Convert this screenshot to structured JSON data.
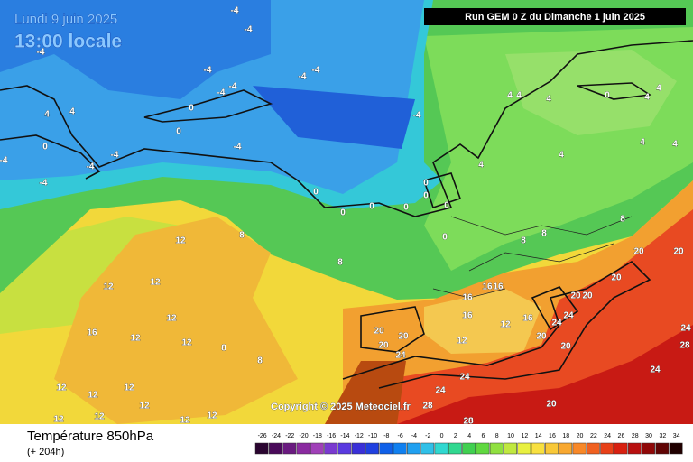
{
  "header": {
    "date": "Lundi 9 juin 2025",
    "time": "13:00 locale",
    "run": "Run GEM 0 Z du Dimanche 1 juin 2025"
  },
  "map": {
    "copyright": "Copyright © 2025 Meteociel.fr",
    "labels": [
      "-4",
      "-4",
      "-4",
      "-4",
      "-4",
      "-4",
      "-4",
      "-4",
      "-4",
      "-4",
      "-4",
      "-4",
      "-4",
      "-4",
      "4",
      "4",
      "4",
      "4",
      "4",
      "4",
      "4",
      "4",
      "4",
      "4",
      "4",
      "0",
      "0",
      "0",
      "0",
      "0",
      "0",
      "0",
      "0",
      "0",
      "0",
      "0",
      "0",
      "8",
      "8",
      "8",
      "8",
      "8",
      "8",
      "8",
      "12",
      "12",
      "12",
      "12",
      "12",
      "12",
      "12",
      "12",
      "12",
      "12",
      "12",
      "12",
      "12",
      "12",
      "12",
      "12",
      "16",
      "16",
      "16",
      "16",
      "16",
      "16",
      "20",
      "20",
      "20",
      "20",
      "20",
      "20",
      "20",
      "20",
      "20",
      "20",
      "20",
      "24",
      "24",
      "24",
      "24",
      "24",
      "24",
      "24",
      "28",
      "28",
      "28"
    ]
  },
  "footer": {
    "title": "Température 850hPa",
    "subtitle": "(+ 204h)",
    "scale": [
      "-26",
      "-24",
      "-22",
      "-20",
      "-18",
      "-16",
      "-14",
      "-12",
      "-10",
      "-8",
      "-6",
      "-4",
      "-2",
      "0",
      "2",
      "4",
      "6",
      "8",
      "10",
      "12",
      "14",
      "16",
      "18",
      "20",
      "22",
      "24",
      "26",
      "28",
      "30",
      "32",
      "34"
    ]
  }
}
